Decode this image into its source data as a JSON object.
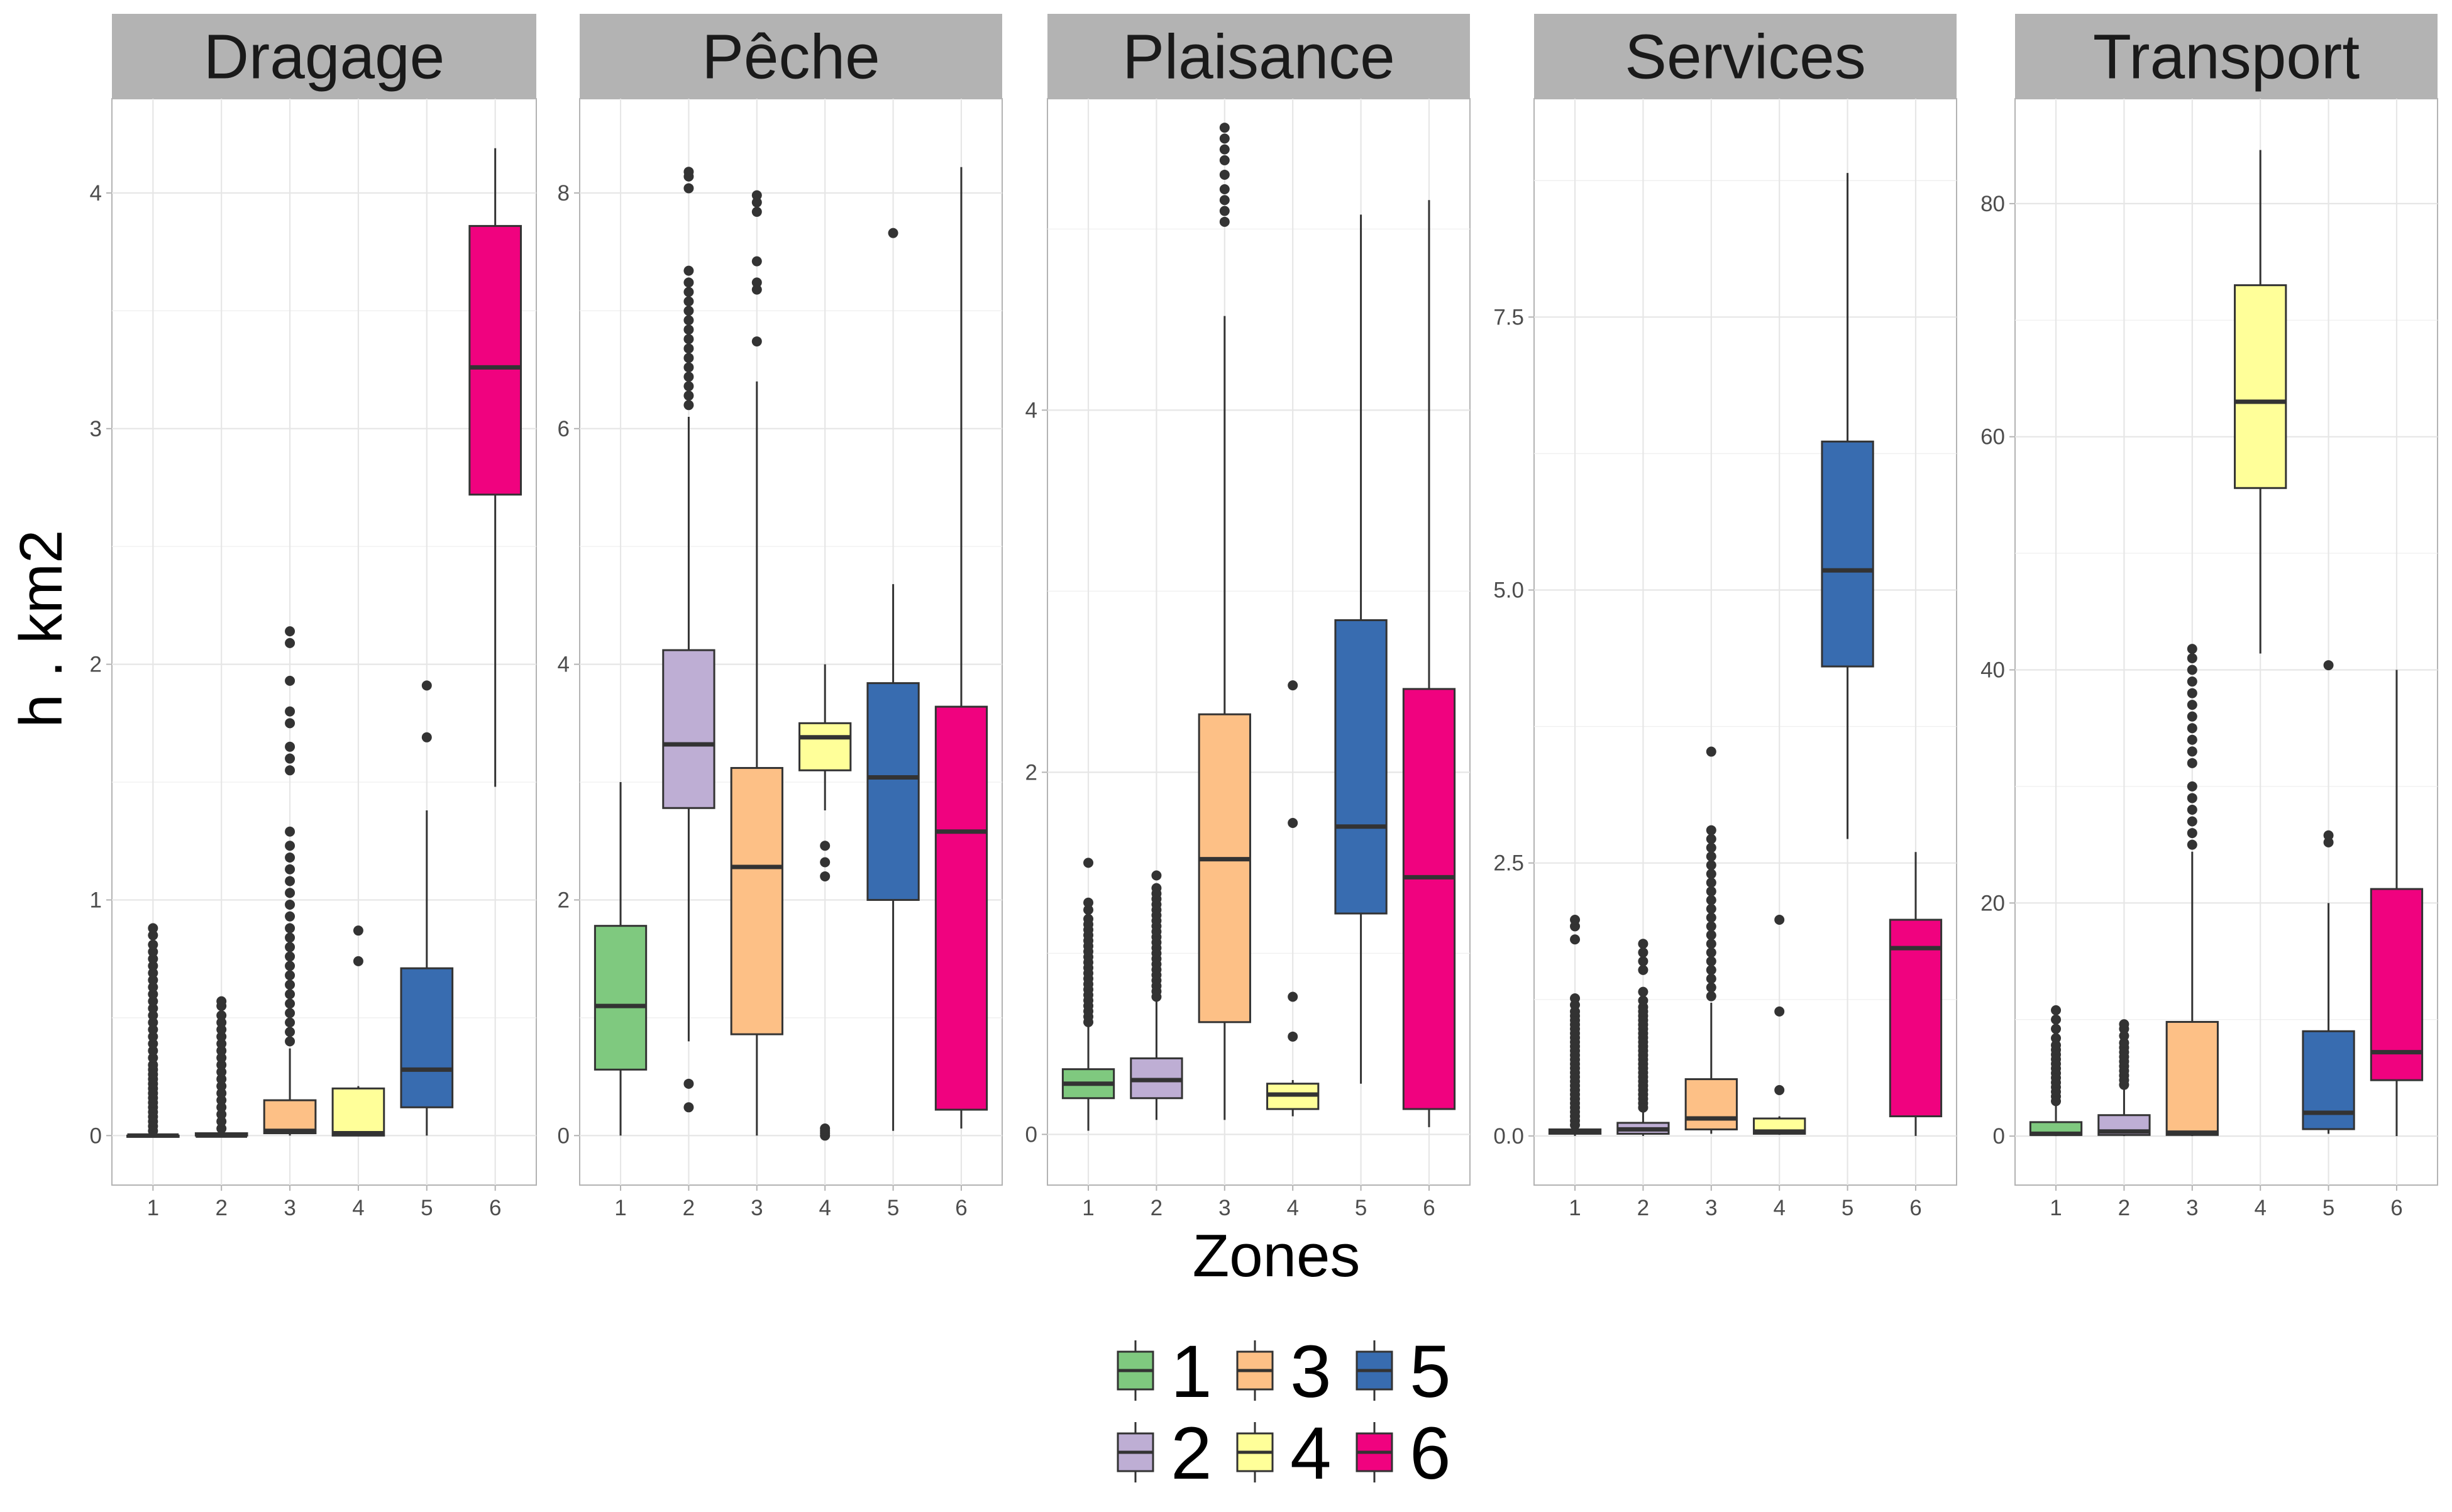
{
  "chart_data": {
    "type": "boxplot",
    "xlabel": "Zones",
    "ylabel": "h . km2",
    "categories": [
      "1",
      "2",
      "3",
      "4",
      "5",
      "6"
    ],
    "colors": {
      "1": "#7fc97f",
      "2": "#beaed4",
      "3": "#fdc086",
      "4": "#ffff99",
      "5": "#386cb0",
      "6": "#f0027f"
    },
    "legend": {
      "position": "bottom",
      "entries": [
        "1",
        "2",
        "3",
        "4",
        "5",
        "6"
      ]
    },
    "grid": true,
    "theme": "light",
    "panels": [
      {
        "title": "Dragage",
        "ylim": [
          -0.21,
          4.4
        ],
        "yticks": [
          0,
          1,
          2,
          3,
          4
        ],
        "ytick_labels": [
          "0",
          "1",
          "2",
          "3",
          "4"
        ],
        "boxes": [
          {
            "zone": "1",
            "lower": 0,
            "q1": 0,
            "median": 0,
            "q3": 0,
            "upper": 0,
            "outliers": [
              0.02,
              0.04,
              0.06,
              0.08,
              0.1,
              0.12,
              0.14,
              0.16,
              0.18,
              0.2,
              0.22,
              0.24,
              0.26,
              0.28,
              0.3,
              0.33,
              0.36,
              0.39,
              0.42,
              0.45,
              0.48,
              0.51,
              0.54,
              0.57,
              0.6,
              0.63,
              0.66,
              0.69,
              0.72,
              0.75,
              0.78,
              0.81,
              0.85,
              0.88
            ]
          },
          {
            "zone": "2",
            "lower": 0,
            "q1": 0,
            "median": 0,
            "q3": 0.01,
            "upper": 0.01,
            "outliers": [
              0.03,
              0.06,
              0.09,
              0.12,
              0.15,
              0.18,
              0.21,
              0.24,
              0.27,
              0.3,
              0.33,
              0.36,
              0.39,
              0.42,
              0.45,
              0.48,
              0.51,
              0.55,
              0.57
            ]
          },
          {
            "zone": "3",
            "lower": 0,
            "q1": 0.01,
            "median": 0.02,
            "q3": 0.15,
            "upper": 0.37,
            "outliers": [
              0.4,
              0.44,
              0.48,
              0.52,
              0.56,
              0.6,
              0.64,
              0.68,
              0.72,
              0.76,
              0.8,
              0.84,
              0.88,
              0.93,
              0.98,
              1.03,
              1.08,
              1.13,
              1.18,
              1.23,
              1.29,
              1.55,
              1.6,
              1.65,
              1.75,
              1.8,
              1.93,
              2.09,
              2.14
            ]
          },
          {
            "zone": "4",
            "lower": 0,
            "q1": 0,
            "median": 0.01,
            "q3": 0.2,
            "upper": 0.21,
            "outliers": [
              0.74,
              0.87
            ]
          },
          {
            "zone": "5",
            "lower": 0,
            "q1": 0.12,
            "median": 0.28,
            "q3": 0.71,
            "upper": 1.38,
            "outliers": [
              1.69,
              1.91
            ]
          },
          {
            "zone": "6",
            "lower": 1.48,
            "q1": 2.72,
            "median": 3.26,
            "q3": 3.86,
            "upper": 4.19,
            "outliers": []
          }
        ]
      },
      {
        "title": "Pêche",
        "ylim": [
          -0.42,
          8.8
        ],
        "yticks": [
          0,
          2,
          4,
          6,
          8
        ],
        "ytick_labels": [
          "0",
          "2",
          "4",
          "6",
          "8"
        ],
        "boxes": [
          {
            "zone": "1",
            "lower": 0,
            "q1": 0.56,
            "median": 1.1,
            "q3": 1.78,
            "upper": 3.0,
            "outliers": []
          },
          {
            "zone": "2",
            "lower": 0.8,
            "q1": 2.78,
            "median": 3.32,
            "q3": 4.12,
            "upper": 6.1,
            "outliers": [
              0.24,
              0.44,
              6.2,
              6.28,
              6.36,
              6.44,
              6.52,
              6.6,
              6.68,
              6.76,
              6.84,
              6.92,
              7.0,
              7.08,
              7.16,
              7.24,
              7.34,
              8.04,
              8.14,
              8.18
            ]
          },
          {
            "zone": "3",
            "lower": 0,
            "q1": 0.86,
            "median": 2.28,
            "q3": 3.12,
            "upper": 6.4,
            "outliers": [
              6.74,
              7.18,
              7.24,
              7.42,
              7.84,
              7.92,
              7.98
            ]
          },
          {
            "zone": "4",
            "lower": 2.76,
            "q1": 3.1,
            "median": 3.38,
            "q3": 3.5,
            "upper": 4.0,
            "outliers": [
              0.0,
              0.02,
              0.04,
              0.06,
              2.2,
              2.32,
              2.46
            ]
          },
          {
            "zone": "5",
            "lower": 0.04,
            "q1": 2.0,
            "median": 3.04,
            "q3": 3.84,
            "upper": 4.68,
            "outliers": [
              7.66
            ]
          },
          {
            "zone": "6",
            "lower": 0.06,
            "q1": 0.22,
            "median": 2.58,
            "q3": 3.64,
            "upper": 8.22,
            "outliers": []
          }
        ]
      },
      {
        "title": "Plaisance",
        "ylim": [
          -0.28,
          5.72
        ],
        "yticks": [
          0,
          2,
          4
        ],
        "ytick_labels": [
          "0",
          "2",
          "4"
        ],
        "boxes": [
          {
            "zone": "1",
            "lower": 0.02,
            "q1": 0.2,
            "median": 0.28,
            "q3": 0.36,
            "upper": 0.6,
            "outliers": [
              0.62,
              0.65,
              0.68,
              0.71,
              0.74,
              0.77,
              0.8,
              0.83,
              0.86,
              0.89,
              0.92,
              0.95,
              0.98,
              1.01,
              1.04,
              1.07,
              1.1,
              1.13,
              1.16,
              1.19,
              1.24,
              1.28,
              1.5
            ]
          },
          {
            "zone": "2",
            "lower": 0.08,
            "q1": 0.2,
            "median": 0.3,
            "q3": 0.42,
            "upper": 0.74,
            "outliers": [
              0.76,
              0.79,
              0.82,
              0.85,
              0.88,
              0.91,
              0.94,
              0.97,
              1.0,
              1.03,
              1.06,
              1.09,
              1.12,
              1.15,
              1.18,
              1.21,
              1.24,
              1.27,
              1.3,
              1.33,
              1.36,
              1.43
            ]
          },
          {
            "zone": "3",
            "lower": 0.08,
            "q1": 0.62,
            "median": 1.52,
            "q3": 2.32,
            "upper": 4.52,
            "outliers": [
              5.04,
              5.1,
              5.16,
              5.22,
              5.3,
              5.38,
              5.44,
              5.5,
              5.56
            ]
          },
          {
            "zone": "4",
            "lower": 0.1,
            "q1": 0.14,
            "median": 0.22,
            "q3": 0.28,
            "upper": 0.3,
            "outliers": [
              0.54,
              0.76,
              1.72,
              2.48
            ]
          },
          {
            "zone": "5",
            "lower": 0.28,
            "q1": 1.22,
            "median": 1.7,
            "q3": 2.84,
            "upper": 5.08,
            "outliers": []
          },
          {
            "zone": "6",
            "lower": 0.04,
            "q1": 0.14,
            "median": 1.42,
            "q3": 2.46,
            "upper": 5.16,
            "outliers": []
          }
        ]
      },
      {
        "title": "Services",
        "ylim": [
          -0.45,
          9.5
        ],
        "yticks": [
          0,
          2.5,
          5,
          7.5
        ],
        "ytick_labels": [
          "0.0",
          "2.5",
          "5.0",
          "7.5"
        ],
        "boxes": [
          {
            "zone": "1",
            "lower": 0,
            "q1": 0.02,
            "median": 0.04,
            "q3": 0.06,
            "upper": 0.08,
            "outliers": [
              0.1,
              0.14,
              0.18,
              0.22,
              0.26,
              0.3,
              0.34,
              0.38,
              0.42,
              0.46,
              0.5,
              0.54,
              0.58,
              0.62,
              0.66,
              0.7,
              0.74,
              0.78,
              0.82,
              0.86,
              0.9,
              0.94,
              0.98,
              1.02,
              1.06,
              1.1,
              1.14,
              1.2,
              1.26,
              1.8,
              1.92,
              1.98
            ]
          },
          {
            "zone": "2",
            "lower": 0,
            "q1": 0.02,
            "median": 0.06,
            "q3": 0.12,
            "upper": 0.22,
            "outliers": [
              0.26,
              0.3,
              0.34,
              0.38,
              0.42,
              0.46,
              0.5,
              0.54,
              0.58,
              0.62,
              0.66,
              0.7,
              0.74,
              0.78,
              0.82,
              0.86,
              0.9,
              0.94,
              0.98,
              1.02,
              1.06,
              1.1,
              1.14,
              1.18,
              1.24,
              1.32,
              1.52,
              1.6,
              1.68,
              1.76
            ]
          },
          {
            "zone": "3",
            "lower": 0.02,
            "q1": 0.06,
            "median": 0.16,
            "q3": 0.52,
            "upper": 1.22,
            "outliers": [
              1.28,
              1.36,
              1.44,
              1.52,
              1.6,
              1.68,
              1.76,
              1.84,
              1.92,
              2.0,
              2.08,
              2.16,
              2.24,
              2.32,
              2.4,
              2.48,
              2.56,
              2.64,
              2.72,
              2.8,
              3.52
            ]
          },
          {
            "zone": "4",
            "lower": 0.01,
            "q1": 0.02,
            "median": 0.04,
            "q3": 0.16,
            "upper": 0.18,
            "outliers": [
              0.42,
              1.14,
              1.98
            ]
          },
          {
            "zone": "5",
            "lower": 2.72,
            "q1": 4.3,
            "median": 5.18,
            "q3": 6.36,
            "upper": 8.82,
            "outliers": []
          },
          {
            "zone": "6",
            "lower": 0,
            "q1": 0.18,
            "median": 1.72,
            "q3": 1.98,
            "upper": 2.6,
            "outliers": []
          }
        ]
      },
      {
        "title": "Transport",
        "ylim": [
          -4.2,
          89
        ],
        "yticks": [
          0,
          20,
          40,
          60,
          80
        ],
        "ytick_labels": [
          "0",
          "20",
          "40",
          "60",
          "80"
        ],
        "boxes": [
          {
            "zone": "1",
            "lower": 0,
            "q1": 0.1,
            "median": 0.2,
            "q3": 1.2,
            "upper": 2.8,
            "outliers": [
              3.0,
              3.4,
              3.8,
              4.2,
              4.6,
              5.0,
              5.4,
              5.8,
              6.2,
              6.6,
              7.0,
              7.4,
              7.8,
              8.4,
              9.2,
              10.0,
              10.8
            ]
          },
          {
            "zone": "2",
            "lower": 0,
            "q1": 0.1,
            "median": 0.4,
            "q3": 1.8,
            "upper": 4.2,
            "outliers": [
              4.4,
              4.8,
              5.2,
              5.6,
              6.0,
              6.4,
              6.8,
              7.2,
              7.6,
              8.0,
              8.6,
              9.2,
              9.6
            ]
          },
          {
            "zone": "3",
            "lower": 0,
            "q1": 0.1,
            "median": 0.3,
            "q3": 9.8,
            "upper": 24.4,
            "outliers": [
              25.0,
              26.0,
              27.0,
              28.0,
              29.0,
              30.0,
              32.0,
              33.0,
              34.0,
              35.0,
              36.0,
              37.0,
              38.0,
              39.0,
              40.0,
              41.0,
              41.8
            ]
          },
          {
            "zone": "4",
            "lower": 41.4,
            "q1": 55.6,
            "median": 63.0,
            "q3": 73.0,
            "upper": 84.6,
            "outliers": []
          },
          {
            "zone": "5",
            "lower": 0.2,
            "q1": 0.6,
            "median": 2.0,
            "q3": 9.0,
            "upper": 20.0,
            "outliers": [
              25.2,
              25.8,
              40.4
            ]
          },
          {
            "zone": "6",
            "lower": 0,
            "q1": 4.8,
            "median": 7.2,
            "q3": 21.2,
            "upper": 40.0,
            "outliers": []
          }
        ]
      }
    ]
  }
}
